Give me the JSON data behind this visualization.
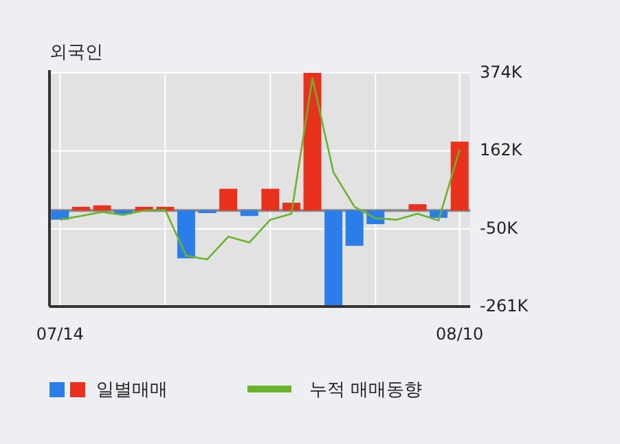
{
  "chart_data": {
    "type": "bar",
    "title": "외국인",
    "categories": [
      "07/14",
      null,
      null,
      null,
      null,
      null,
      null,
      null,
      null,
      null,
      null,
      null,
      null,
      null,
      null,
      null,
      null,
      null,
      null,
      "08/10"
    ],
    "series": [
      {
        "name": "일별매매",
        "colors": [
          "#2b7de9",
          "#e8321e",
          "#e8321e",
          "#2b7de9",
          "#e8321e",
          "#e8321e",
          "#2b7de9",
          "#2b7de9",
          "#e8321e",
          "#2b7de9",
          "#e8321e",
          "#e8321e",
          "#e8321e",
          "#2b7de9",
          "#2b7de9",
          "#2b7de9",
          "#2b7de9",
          "#e8321e",
          "#2b7de9",
          "#e8321e"
        ],
        "values": [
          -25,
          10,
          14,
          -10,
          10,
          10,
          -130,
          -7,
          59,
          -15,
          59,
          21,
          374,
          -261,
          -96,
          -37,
          0,
          17,
          -20,
          187
        ]
      },
      {
        "name": "누적 매매동향",
        "type": "line",
        "color": "#6ab42d",
        "values": [
          -25,
          -15,
          -4,
          -12,
          0,
          2,
          -123,
          -133,
          -71,
          -87,
          -25,
          -9,
          359,
          104,
          10,
          -21,
          -25,
          -9,
          -27,
          166
        ]
      }
    ],
    "ylim": [
      -261,
      374
    ],
    "yticks": [
      {
        "value": 374,
        "label": "374K"
      },
      {
        "value": 162,
        "label": "162K"
      },
      {
        "value": -50,
        "label": "-50K"
      },
      {
        "value": -261,
        "label": "-261K"
      }
    ],
    "grid": true,
    "legend": "bottom"
  }
}
